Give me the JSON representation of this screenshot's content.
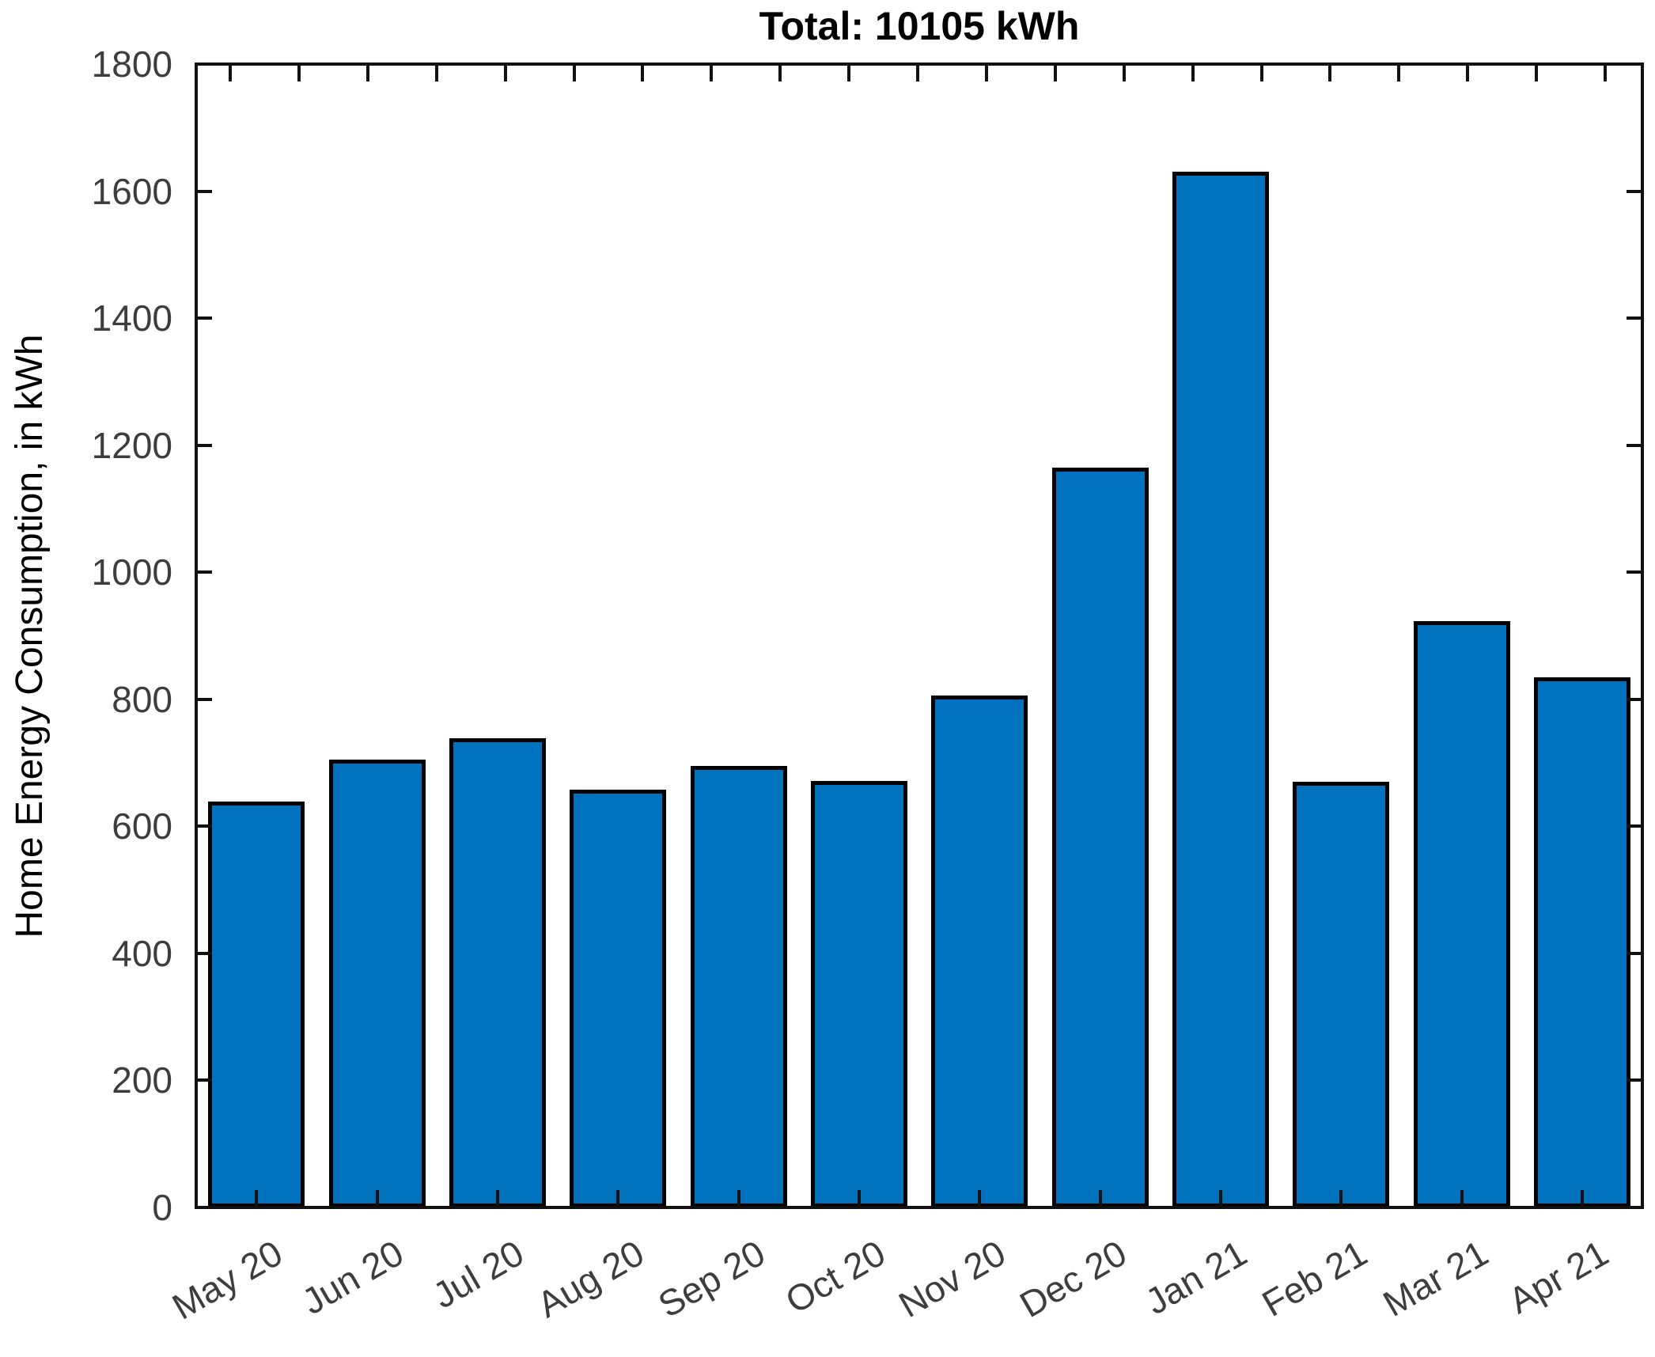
{
  "chart_data": {
    "type": "bar",
    "title": "Total: 10105 kWh",
    "ylabel": "Home Energy Consumption, in kWh",
    "xlabel": "",
    "categories": [
      "May 20",
      "Jun 20",
      "Jul 20",
      "Aug 20",
      "Sep 20",
      "Oct 20",
      "Nov 20",
      "Dec 20",
      "Jan 21",
      "Feb 21",
      "Mar 21",
      "Apr 21"
    ],
    "values": [
      636,
      703,
      736,
      655,
      692,
      669,
      804,
      1162,
      1628,
      668,
      920,
      832
    ],
    "total": 10105,
    "unit": "kWh",
    "ylim": [
      0,
      1800
    ],
    "yticks": [
      0,
      200,
      400,
      600,
      800,
      1000,
      1200,
      1400,
      1600,
      1800
    ],
    "grid": false,
    "legend": null,
    "bar_color": "#0072BD",
    "bar_edge_color": "#000000",
    "axis_color": "#111111",
    "tick_label_color": "#3d3d3d",
    "x_tick_angle_deg": 30
  }
}
